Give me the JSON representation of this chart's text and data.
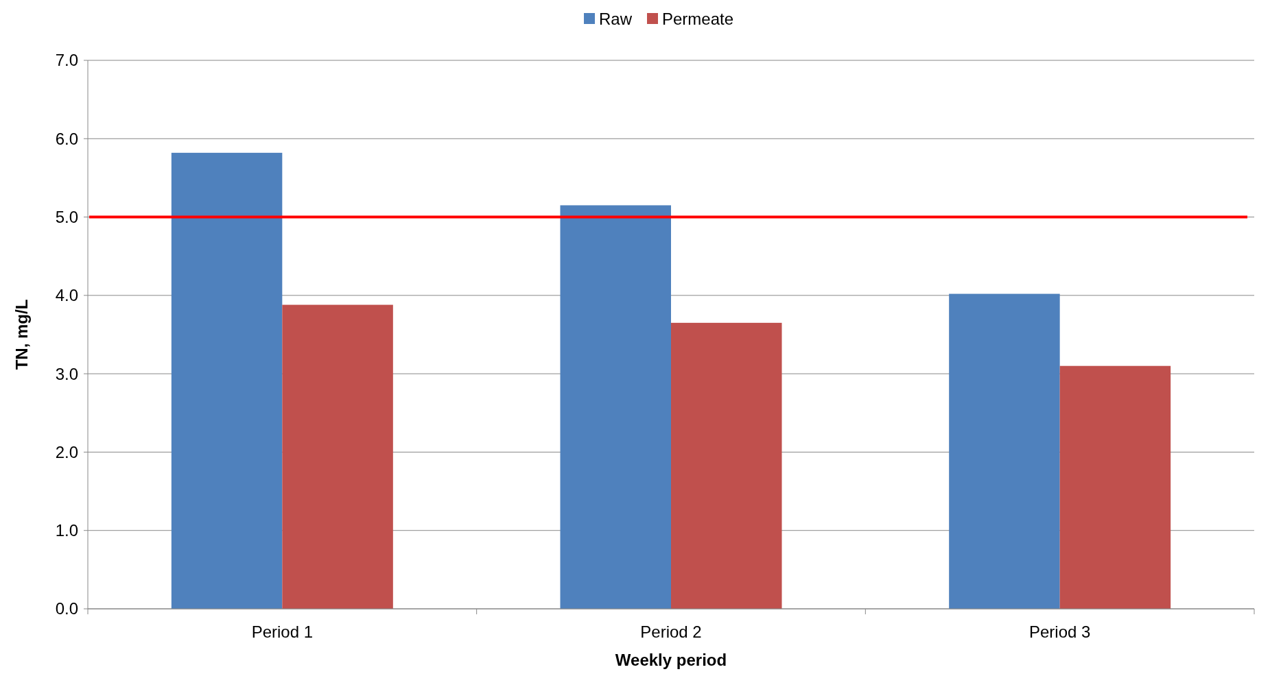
{
  "chart_data": {
    "type": "bar",
    "xlabel": "Weekly period",
    "ylabel": "TN, mg/L",
    "categories": [
      "Period 1",
      "Period 2",
      "Period 3"
    ],
    "series": [
      {
        "name": "Raw",
        "color": "#4f81bd",
        "values": [
          5.82,
          5.15,
          4.02
        ]
      },
      {
        "name": "Permeate",
        "color": "#c0504d",
        "values": [
          3.88,
          3.65,
          3.1
        ]
      }
    ],
    "ylim": [
      0,
      7
    ],
    "yticks": [
      {
        "value": 0,
        "label": "0.0"
      },
      {
        "value": 1,
        "label": "1.0"
      },
      {
        "value": 2,
        "label": "2.0"
      },
      {
        "value": 3,
        "label": "3.0"
      },
      {
        "value": 4,
        "label": "4.0"
      },
      {
        "value": 5,
        "label": "5.0"
      },
      {
        "value": 6,
        "label": "6.0"
      },
      {
        "value": 7,
        "label": "7.0"
      }
    ],
    "grid": "y",
    "legend": "top",
    "ref_lines": [
      {
        "axis": "y",
        "value": 5,
        "color": "#ff0000"
      }
    ]
  }
}
